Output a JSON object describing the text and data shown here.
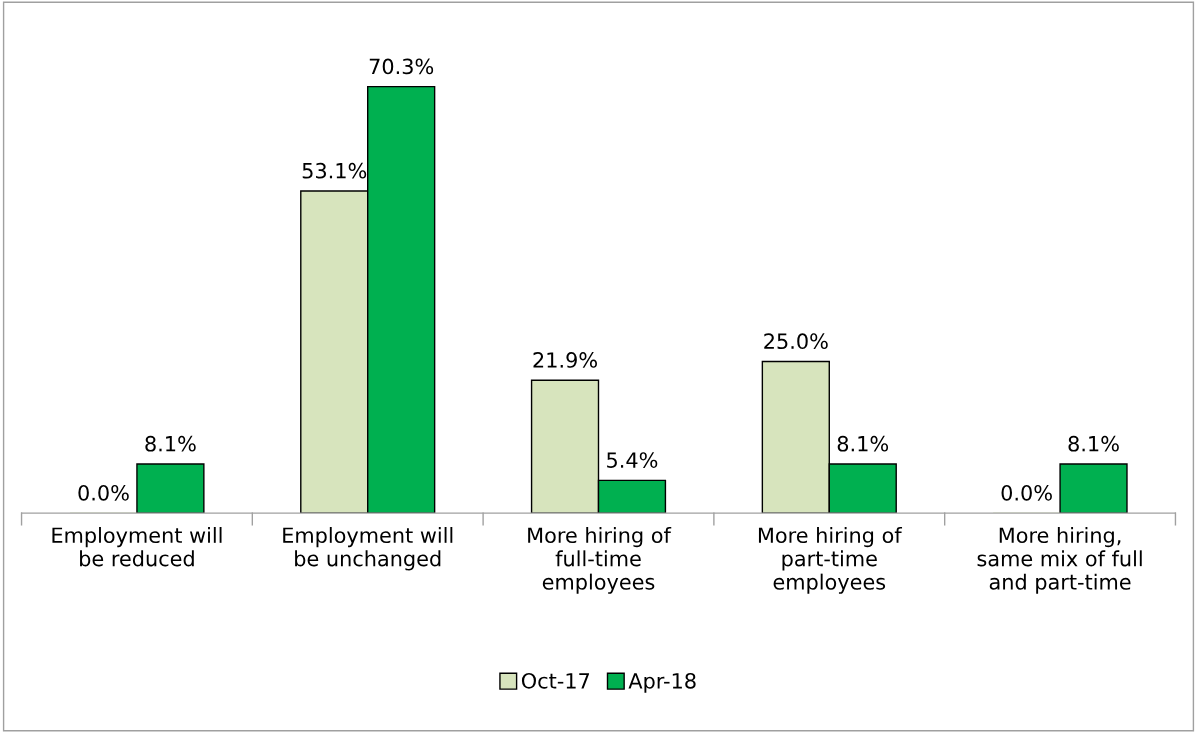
{
  "chart_data": {
    "type": "bar",
    "categories": [
      "Employment will\nbe reduced",
      "Employment will\nbe unchanged",
      "More hiring of\nfull-time\nemployees",
      "More hiring of\npart-time\nemployees",
      "More hiring,\nsame mix of full\nand part-time"
    ],
    "series": [
      {
        "name": "Oct-17",
        "color": "#d7e4bd",
        "values": [
          0.0,
          53.1,
          21.9,
          25.0,
          0.0
        ],
        "value_labels": [
          "0.0%",
          "53.1%",
          "21.9%",
          "25.0%",
          "0.0%"
        ]
      },
      {
        "name": "Apr-18",
        "color": "#00b050",
        "values": [
          8.1,
          70.3,
          5.4,
          8.1,
          8.1
        ],
        "value_labels": [
          "8.1%",
          "70.3%",
          "5.4%",
          "8.1%",
          "8.1%"
        ]
      }
    ],
    "tick_labels": "x",
    "grid": false,
    "legend": "bottom"
  }
}
